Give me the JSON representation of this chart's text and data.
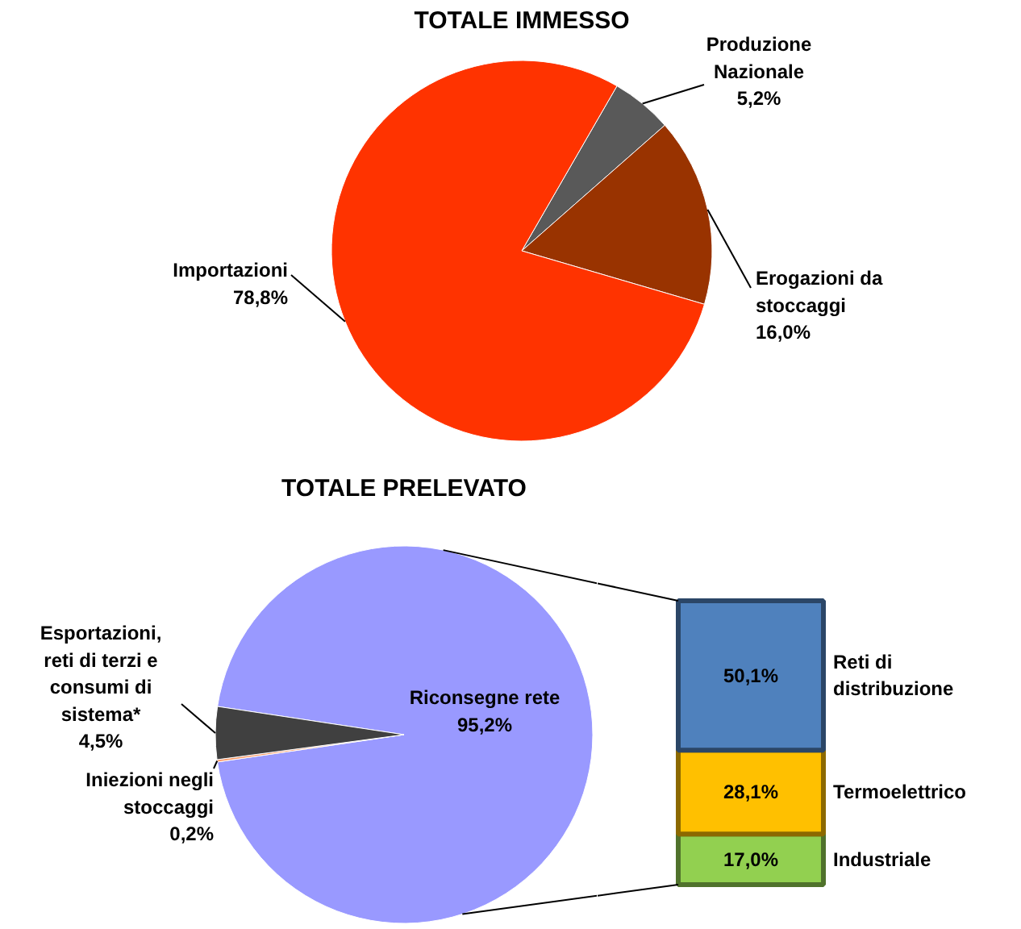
{
  "chart_data": [
    {
      "type": "pie",
      "title": "TOTALE IMMESSO",
      "categories": [
        "Produzione Nazionale",
        "Erogazioni da stoccaggi",
        "Importazioni"
      ],
      "values": [
        5.2,
        16.0,
        78.8
      ],
      "colors": [
        "#595959",
        "#993300",
        "#ff3300"
      ],
      "value_labels": [
        "5,2%",
        "16,0%",
        "78,8%"
      ]
    },
    {
      "type": "pie",
      "title": "TOTALE PRELEVATO",
      "categories": [
        "Riconsegne rete",
        "Iniezioni negli stoccaggi",
        "Esportazioni, reti di terzi e consumi di sistema*"
      ],
      "values": [
        95.2,
        0.2,
        4.5
      ],
      "colors": [
        "#9999ff",
        "#ff9966",
        "#404040"
      ],
      "value_labels": [
        "95,2%",
        "0,2%",
        "4,5%"
      ]
    },
    {
      "type": "bar",
      "stacked": true,
      "categories": [
        null
      ],
      "series": [
        {
          "name": "Industriale",
          "color": "#92d050",
          "values": [
            17.0
          ],
          "value_labels": [
            "17,0%"
          ]
        },
        {
          "name": "Termoelettrico",
          "color": "#ffc000",
          "values": [
            28.1
          ],
          "value_labels": [
            "28,1%"
          ]
        },
        {
          "name": "Reti di distribuzione",
          "color": "#4f81bd",
          "values": [
            50.1
          ],
          "value_labels": [
            "50,1%"
          ]
        }
      ]
    }
  ]
}
